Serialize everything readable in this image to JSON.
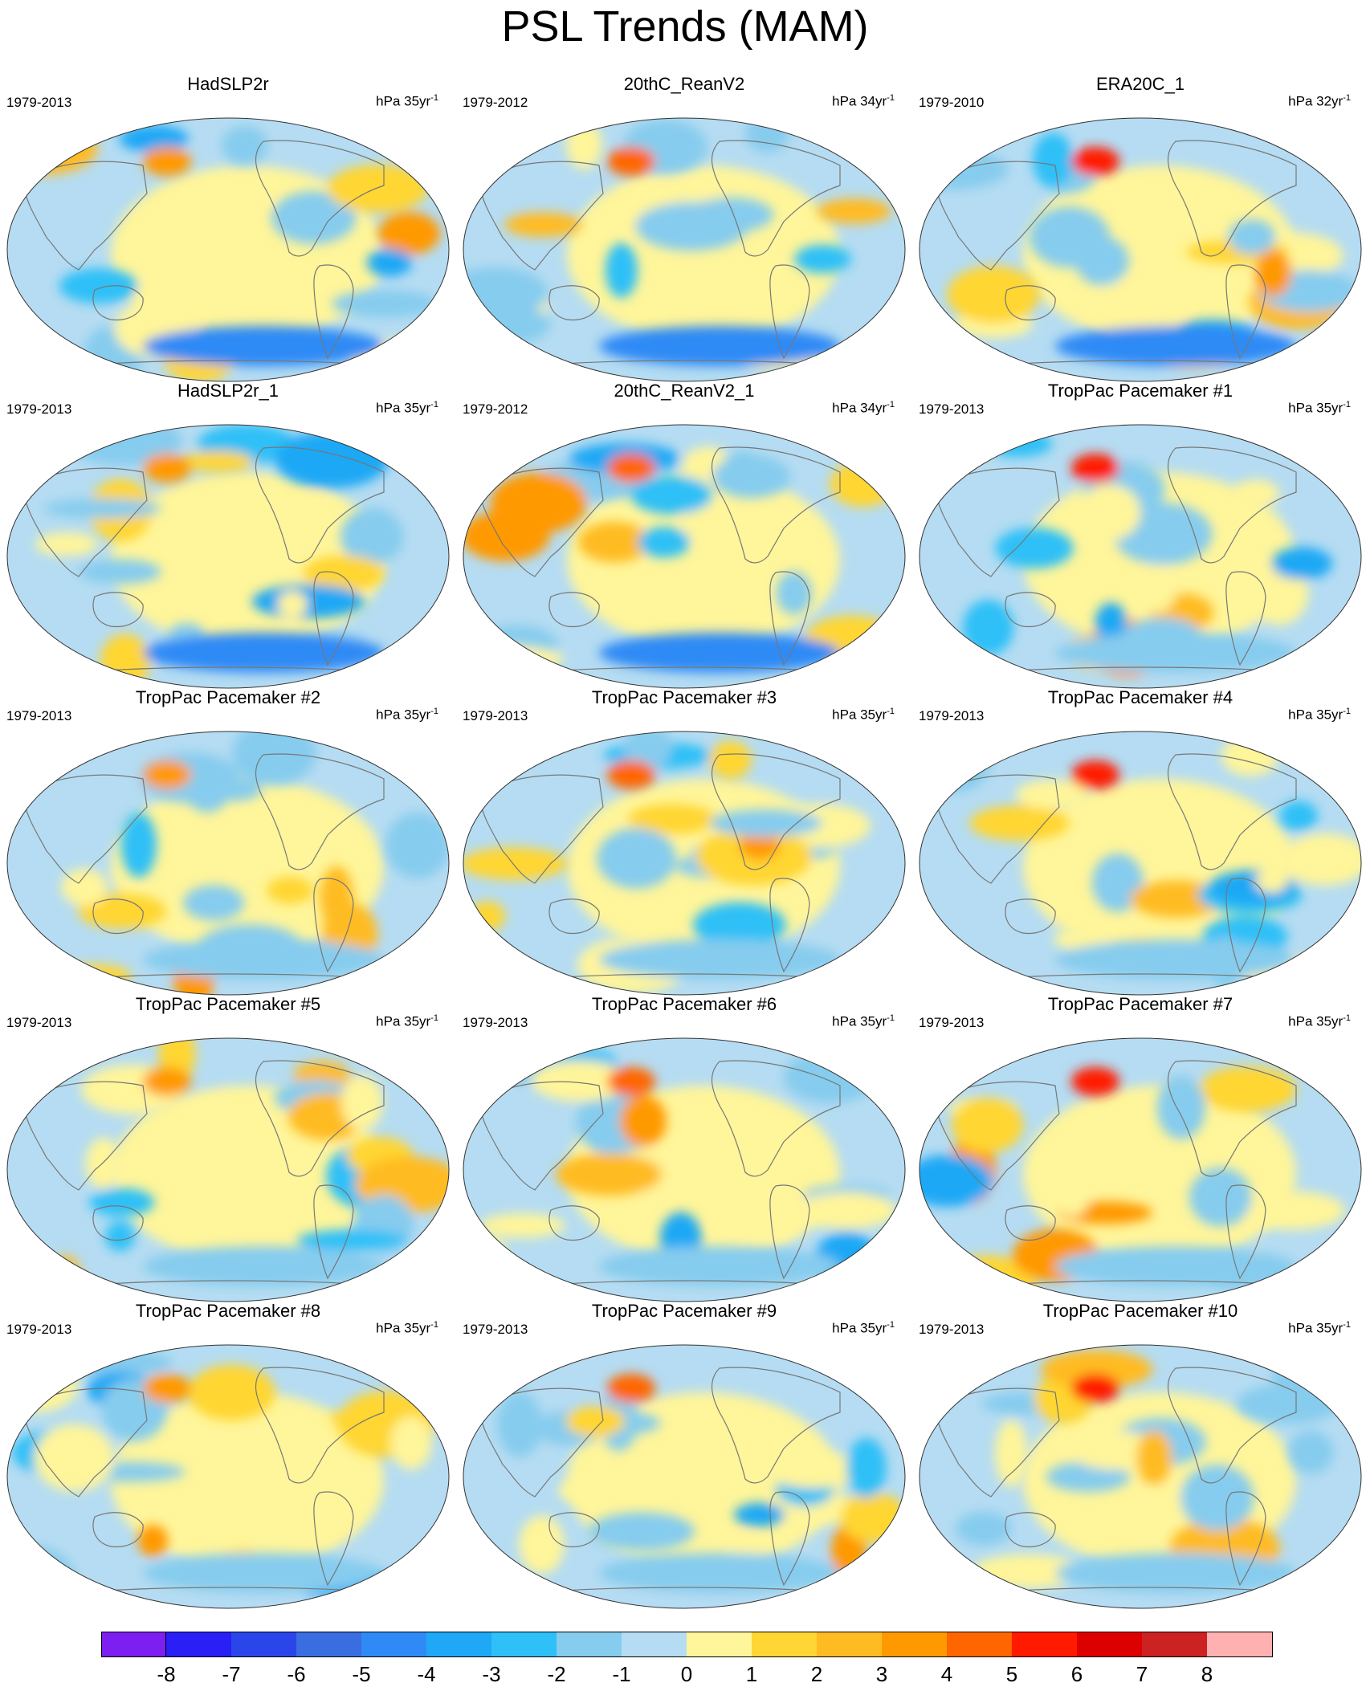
{
  "figure": {
    "title": "PSL Trends (MAM)"
  },
  "panels": [
    {
      "title": "HadSLP2r",
      "period": "1979-2013",
      "units": "hPa 35yr",
      "units_exp": "-1"
    },
    {
      "title": "20thC_ReanV2",
      "period": "1979-2012",
      "units": "hPa 34yr",
      "units_exp": "-1"
    },
    {
      "title": "ERA20C_1",
      "period": "1979-2010",
      "units": "hPa 32yr",
      "units_exp": "-1"
    },
    {
      "title": "HadSLP2r_1",
      "period": "1979-2013",
      "units": "hPa 35yr",
      "units_exp": "-1"
    },
    {
      "title": "20thC_ReanV2_1",
      "period": "1979-2012",
      "units": "hPa 34yr",
      "units_exp": "-1"
    },
    {
      "title": "TropPac Pacemaker #1",
      "period": "1979-2013",
      "units": "hPa 35yr",
      "units_exp": "-1"
    },
    {
      "title": "TropPac Pacemaker #2",
      "period": "1979-2013",
      "units": "hPa 35yr",
      "units_exp": "-1"
    },
    {
      "title": "TropPac Pacemaker #3",
      "period": "1979-2013",
      "units": "hPa 35yr",
      "units_exp": "-1"
    },
    {
      "title": "TropPac Pacemaker #4",
      "period": "1979-2013",
      "units": "hPa 35yr",
      "units_exp": "-1"
    },
    {
      "title": "TropPac Pacemaker #5",
      "period": "1979-2013",
      "units": "hPa 35yr",
      "units_exp": "-1"
    },
    {
      "title": "TropPac Pacemaker #6",
      "period": "1979-2013",
      "units": "hPa 35yr",
      "units_exp": "-1"
    },
    {
      "title": "TropPac Pacemaker #7",
      "period": "1979-2013",
      "units": "hPa 35yr",
      "units_exp": "-1"
    },
    {
      "title": "TropPac Pacemaker #8",
      "period": "1979-2013",
      "units": "hPa 35yr",
      "units_exp": "-1"
    },
    {
      "title": "TropPac Pacemaker #9",
      "period": "1979-2013",
      "units": "hPa 35yr",
      "units_exp": "-1"
    },
    {
      "title": "TropPac Pacemaker #10",
      "period": "1979-2013",
      "units": "hPa 35yr",
      "units_exp": "-1"
    }
  ],
  "colorbar": {
    "labels": [
      "-8",
      "-7",
      "-6",
      "-5",
      "-4",
      "-3",
      "-2",
      "-1",
      "0",
      "1",
      "2",
      "3",
      "4",
      "5",
      "6",
      "7",
      "8"
    ],
    "colors": [
      "#7c1ff0",
      "#2a1ff5",
      "#2a46ea",
      "#3a6ee0",
      "#2f8af5",
      "#1fa8f5",
      "#2ec0f7",
      "#86ccee",
      "#b5dcf2",
      "#fff59a",
      "#ffd633",
      "#ffbb22",
      "#ff9900",
      "#ff6600",
      "#ff1a00",
      "#dd0000",
      "#cc2222",
      "#ffb0b0"
    ]
  },
  "style": {
    "ocean_fill": "#b5dcf2",
    "land_outline": "#777777",
    "map_border": "#333333"
  }
}
